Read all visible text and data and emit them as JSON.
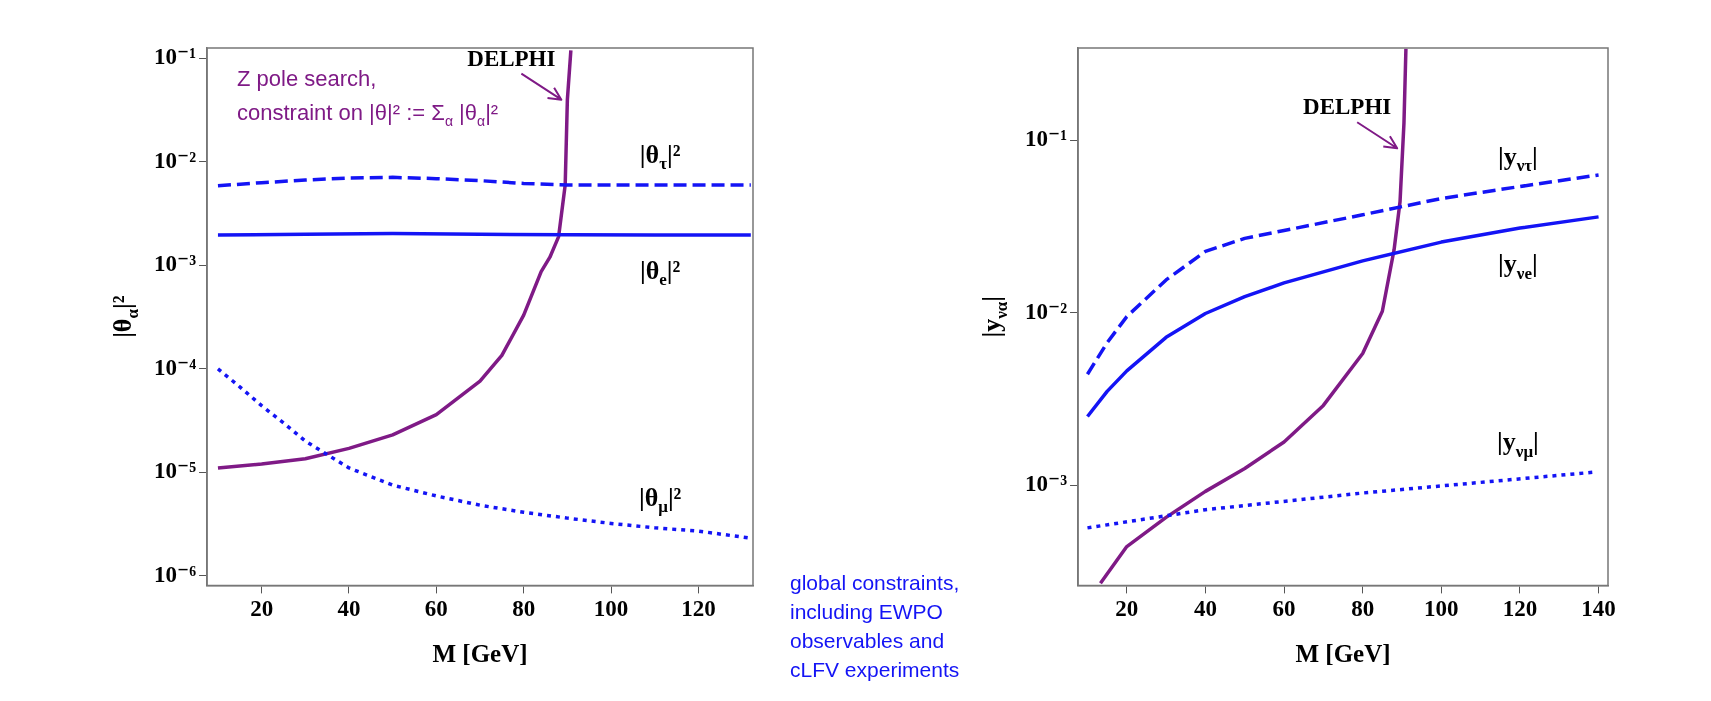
{
  "chart_data": [
    {
      "type": "line",
      "xlabel": "M [GeV]",
      "ylabel": "|θ$_{α}$|²",
      "log": true,
      "xlim": [
        7.5,
        132.5
      ],
      "ylim": [
        8.05e-07,
        0.1265
      ],
      "xticks": [
        20,
        40,
        60,
        80,
        100,
        120
      ],
      "yticks": [
        {
          "value": 0.1,
          "label": "10⁻¹"
        },
        {
          "value": 0.01,
          "label": "10⁻²"
        },
        {
          "value": 0.001,
          "label": "10⁻³"
        },
        {
          "value": 0.0001,
          "label": "10⁻⁴"
        },
        {
          "value": 1e-05,
          "label": "10⁻⁵"
        },
        {
          "value": 1e-06,
          "label": "10⁻⁶"
        }
      ],
      "series": [
        {
          "name": "|θ$_{τ}$|²",
          "color": "#1414f5",
          "line_style": "dashed",
          "x": [
            10,
            20,
            30,
            40,
            50,
            60,
            70,
            80,
            90,
            100,
            110,
            120,
            132
          ],
          "values": [
            0.0059,
            0.0063,
            0.0067,
            0.007,
            0.0071,
            0.0069,
            0.0066,
            0.0062,
            0.006,
            0.006,
            0.006,
            0.006,
            0.006
          ]
        },
        {
          "name": "|θ$_{e}$|²",
          "color": "#1414f5",
          "line_style": "solid",
          "x": [
            10,
            30,
            50,
            70,
            90,
            110,
            132
          ],
          "values": [
            0.00197,
            0.002,
            0.00203,
            0.002,
            0.00198,
            0.00197,
            0.00197
          ]
        },
        {
          "name": "|θ$_{μ}$|²",
          "color": "#1414f5",
          "line_style": "dotted",
          "x": [
            10,
            15,
            20,
            25,
            30,
            40,
            50,
            60,
            70,
            80,
            90,
            100,
            110,
            120,
            132
          ],
          "values": [
            0.0001,
            6.7e-05,
            4.4e-05,
            3e-05,
            2e-05,
            1.1e-05,
            7.5e-06,
            5.9e-06,
            4.8e-06,
            4.1e-06,
            3.6e-06,
            3.2e-06,
            2.9e-06,
            2.7e-06,
            2.3e-06
          ]
        },
        {
          "color": "#7f1a86",
          "line_style": "solid",
          "x": [
            10,
            20,
            30,
            40,
            50,
            60,
            70,
            75,
            80,
            84,
            86,
            88,
            89.5,
            90,
            90.8
          ],
          "values": [
            1.1e-05,
            1.2e-05,
            1.35e-05,
            1.7e-05,
            2.3e-05,
            3.6e-05,
            7.6e-05,
            0.000135,
            0.00033,
            0.00087,
            0.0012,
            0.0019,
            0.006,
            0.04,
            0.12
          ]
        }
      ],
      "annotations": [
        {
          "text": "DELPHI",
          "x": 90,
          "y": 0.04
        },
        "Z pole search,\nconstraint on |θ|² := Σ$_{α}$ |θ$_{α}$|²"
      ]
    },
    {
      "type": "line",
      "xlabel": "M [GeV]",
      "ylabel": "|y$_{να}$|",
      "log": true,
      "xlim": [
        7.6,
        142.4
      ],
      "ylim": [
        0.000262,
        0.3435
      ],
      "xticks": [
        20,
        40,
        60,
        80,
        100,
        120,
        140
      ],
      "yticks": [
        {
          "value": 0.1,
          "label": "10⁻¹"
        },
        {
          "value": 0.01,
          "label": "10⁻²"
        },
        {
          "value": 0.001,
          "label": "10⁻³"
        }
      ],
      "series": [
        {
          "name": "|y$_{ντ}$|",
          "color": "#1414f5",
          "line_style": "dashed",
          "x": [
            10,
            15,
            20,
            30,
            40,
            50,
            60,
            80,
            100,
            120,
            140
          ],
          "values": [
            0.0044,
            0.0067,
            0.0095,
            0.0155,
            0.0227,
            0.027,
            0.03,
            0.037,
            0.046,
            0.054,
            0.063
          ]
        },
        {
          "name": "|y$_{νe}$|",
          "color": "#1414f5",
          "line_style": "solid",
          "x": [
            10,
            15,
            20,
            30,
            40,
            50,
            60,
            80,
            100,
            120,
            140
          ],
          "values": [
            0.0025,
            0.0035,
            0.0046,
            0.0072,
            0.0099,
            0.0124,
            0.0149,
            0.02,
            0.0257,
            0.031,
            0.036
          ]
        },
        {
          "name": "|y$_{νμ}$|",
          "color": "#1414f5",
          "line_style": "dotted",
          "x": [
            10,
            40,
            80,
            139
          ],
          "values": [
            0.000565,
            0.00072,
            0.0009,
            0.00119
          ]
        },
        {
          "color": "#7f1a86",
          "line_style": "solid",
          "x": [
            13.3,
            20,
            30,
            40,
            50,
            60,
            70,
            80,
            85,
            88,
            89.5,
            90.5,
            91
          ],
          "values": [
            0.00027,
            0.00044,
            0.00065,
            0.00092,
            0.00125,
            0.00178,
            0.0029,
            0.0058,
            0.0102,
            0.0233,
            0.044,
            0.126,
            0.34
          ]
        }
      ],
      "annotations": [
        {
          "text": "DELPHI",
          "x": 90.3,
          "y": 0.09
        },
        "global constraints,\nincluding EWPO\nobservables and\ncLFV experiments"
      ]
    }
  ]
}
